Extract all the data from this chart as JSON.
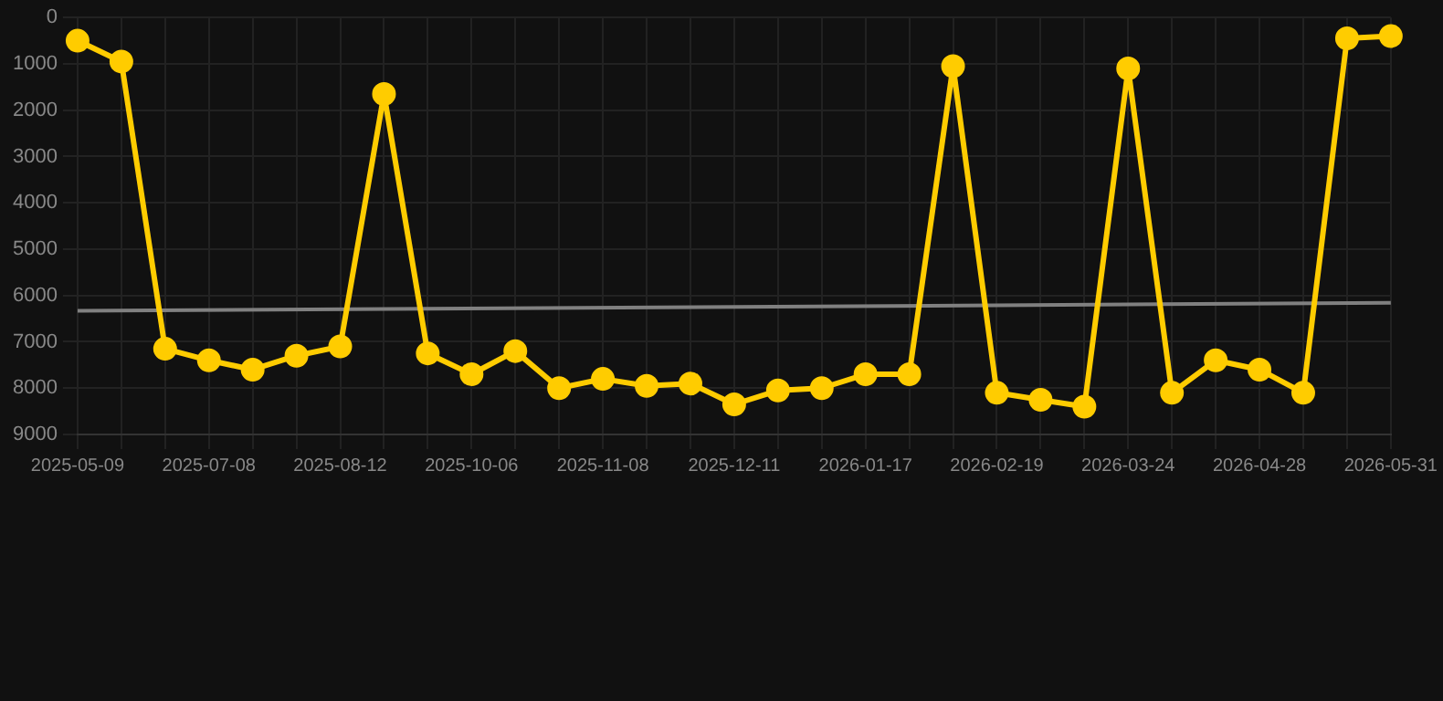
{
  "chart_data": {
    "type": "line",
    "categories": [
      "2025-05-09",
      null,
      null,
      "2025-07-08",
      null,
      null,
      "2025-08-12",
      null,
      null,
      "2025-10-06",
      null,
      null,
      "2025-11-08",
      null,
      null,
      "2025-12-11",
      null,
      null,
      "2026-01-17",
      null,
      null,
      "2026-02-19",
      null,
      null,
      "2026-03-24",
      null,
      null,
      "2026-04-28",
      null,
      null,
      "2026-05-31"
    ],
    "series": [
      {
        "color": "#ffcc00",
        "marker": "circle",
        "values": [
          500,
          950,
          7150,
          7400,
          7600,
          7300,
          7100,
          1650,
          7250,
          7700,
          7200,
          8000,
          7800,
          7950,
          7900,
          8350,
          8050,
          8000,
          7700,
          7700,
          1050,
          8100,
          8250,
          8400,
          1100,
          8100,
          7400,
          7600,
          8100,
          450,
          400
        ]
      },
      {
        "type": "line",
        "color": "#808080",
        "marker": "none",
        "values": [
          6330,
          null,
          null,
          null,
          null,
          null,
          null,
          null,
          null,
          null,
          null,
          null,
          null,
          null,
          null,
          null,
          null,
          null,
          null,
          null,
          null,
          null,
          null,
          null,
          null,
          null,
          null,
          null,
          null,
          null,
          6160
        ]
      }
    ],
    "ylim": [
      9000,
      0
    ],
    "yticks": [
      0,
      1000,
      2000,
      3000,
      4000,
      5000,
      6000,
      7000,
      8000,
      9000
    ],
    "grid": true,
    "legend": false
  }
}
